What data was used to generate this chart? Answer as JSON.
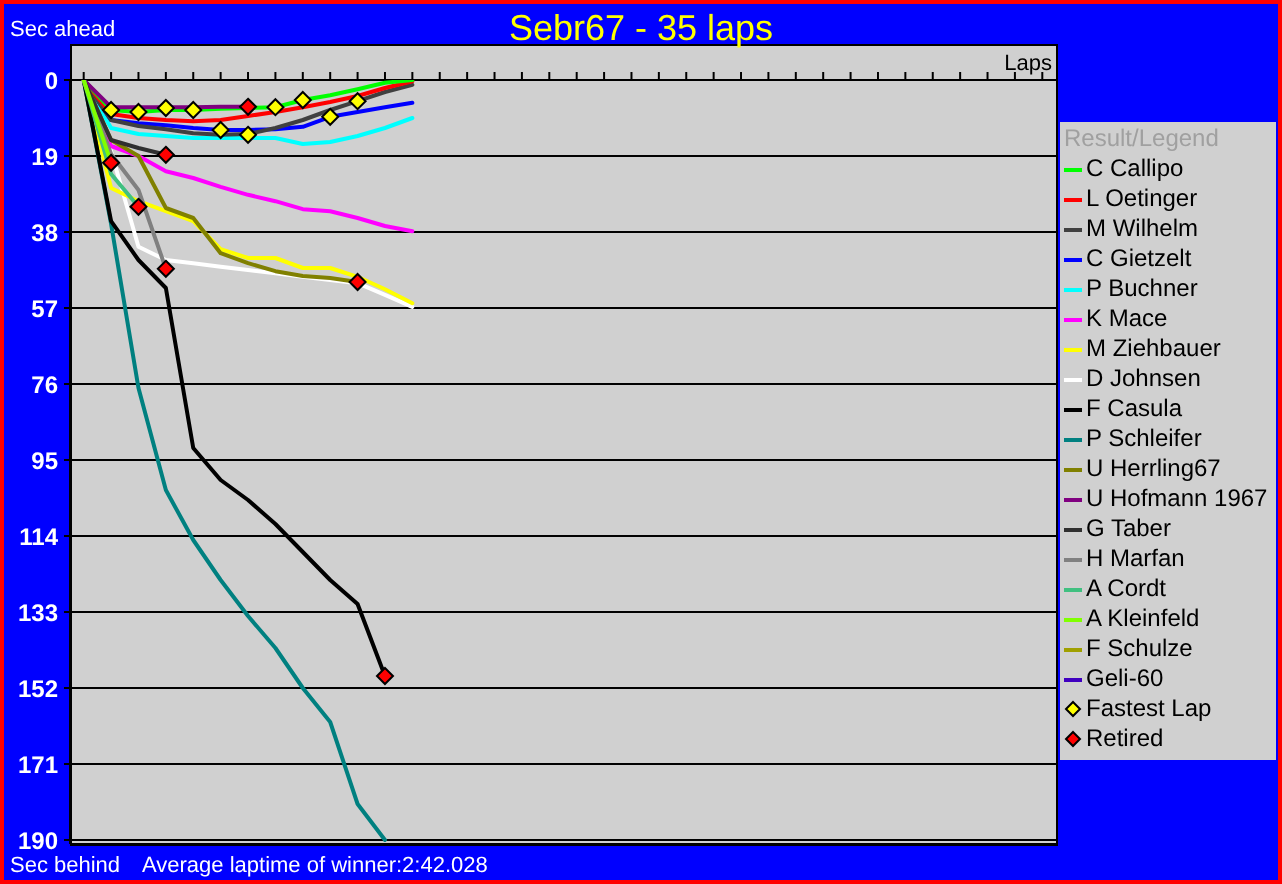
{
  "chart_data": {
    "type": "line",
    "title": "Sebr67 - 35 laps",
    "xlabel": "Laps",
    "ylabel": "Sec ahead",
    "legend_title": "Result/Legend",
    "annotations": [
      "Sec behind",
      "Average laptime of winner:2:42.028"
    ],
    "categories": [
      null,
      null,
      null,
      null,
      null,
      null,
      null,
      null,
      null,
      null,
      null,
      null,
      null,
      null,
      null,
      null,
      null,
      null,
      null,
      null,
      null,
      null,
      null,
      null,
      null,
      null,
      null,
      null,
      null,
      null,
      null,
      null,
      null,
      null,
      null,
      null
    ],
    "ylim": [
      191,
      0
    ],
    "yticks": [
      0,
      19,
      38,
      57,
      76,
      95,
      114,
      133,
      152,
      171,
      190
    ],
    "grid": "y",
    "legend": "right",
    "tick_labels": "y",
    "series": [
      {
        "name": "C Callipo",
        "color": "#00ff00",
        "values": [
          0,
          7.5,
          8,
          7.5,
          7.5,
          7.2,
          7,
          6.8,
          5,
          3.8,
          2.3,
          0.7,
          0,
          null,
          null,
          null,
          null,
          null,
          null,
          null,
          null,
          null,
          null,
          null,
          null,
          null,
          null,
          null,
          null,
          null,
          null,
          null,
          null,
          null,
          null,
          null
        ]
      },
      {
        "name": "L Oetinger",
        "color": "#ff0000",
        "values": [
          0,
          8.5,
          9.5,
          10,
          10.3,
          10,
          9,
          8,
          6.8,
          5.5,
          4,
          2,
          0.3,
          null,
          null,
          null,
          null,
          null,
          null,
          null,
          null,
          null,
          null,
          null,
          null,
          null,
          null,
          null,
          null,
          null,
          null,
          null,
          null,
          null,
          null,
          null
        ]
      },
      {
        "name": "M Wilhelm",
        "color": "#404040",
        "values": [
          0,
          10,
          11.5,
          12.3,
          13.3,
          13.7,
          13.5,
          12,
          10,
          7.5,
          5.3,
          3,
          1.2,
          null,
          null,
          null,
          null,
          null,
          null,
          null,
          null,
          null,
          null,
          null,
          null,
          null,
          null,
          null,
          null,
          null,
          null,
          null,
          null,
          null,
          null,
          null
        ]
      },
      {
        "name": "C Gietzelt",
        "color": "#0000ff",
        "values": [
          0,
          10,
          10.8,
          11.3,
          12,
          12.5,
          12.5,
          12.3,
          11.7,
          9.2,
          8,
          6.8,
          5.7,
          null,
          null,
          null,
          null,
          null,
          null,
          null,
          null,
          null,
          null,
          null,
          null,
          null,
          null,
          null,
          null,
          null,
          null,
          null,
          null,
          null,
          null,
          null
        ]
      },
      {
        "name": "P Buchner",
        "color": "#00ffff",
        "values": [
          0,
          12,
          13.5,
          14,
          14.5,
          14.5,
          14.5,
          14.5,
          16,
          15.5,
          14,
          12,
          9.5,
          null,
          null,
          null,
          null,
          null,
          null,
          null,
          null,
          null,
          null,
          null,
          null,
          null,
          null,
          null,
          null,
          null,
          null,
          null,
          null,
          null,
          null,
          null
        ]
      },
      {
        "name": "K Mace",
        "color": "#ff00ff",
        "values": [
          0,
          16.5,
          19,
          22.8,
          24.5,
          26.7,
          28.7,
          30.3,
          32.3,
          32.8,
          34.5,
          36.5,
          37.8,
          null,
          null,
          null,
          null,
          null,
          null,
          null,
          null,
          null,
          null,
          null,
          null,
          null,
          null,
          null,
          null,
          null,
          null,
          null,
          null,
          null,
          null,
          null
        ]
      },
      {
        "name": "M Ziehbauer",
        "color": "#ffff00",
        "values": [
          0,
          27,
          30.3,
          32.8,
          35.3,
          42.3,
          44.5,
          44.5,
          47,
          47,
          49.2,
          52.3,
          55.8,
          null,
          null,
          null,
          null,
          null,
          null,
          null,
          null,
          null,
          null,
          null,
          null,
          null,
          null,
          null,
          null,
          null,
          null,
          null,
          null,
          null,
          null,
          null
        ]
      },
      {
        "name": "D Johnsen",
        "color": "#ffffff",
        "values": [
          0,
          17.8,
          41.7,
          45,
          45.8,
          46.7,
          47.5,
          48.3,
          49.2,
          50,
          50.8,
          53.7,
          56.7,
          null,
          null,
          null,
          null,
          null,
          null,
          null,
          null,
          null,
          null,
          null,
          null,
          null,
          null,
          null,
          null,
          null,
          null,
          null,
          null,
          null,
          null,
          null
        ]
      },
      {
        "name": "F Casula",
        "color": "#000000",
        "values": [
          0,
          35.3,
          45,
          52,
          92,
          100,
          105,
          111,
          118,
          125,
          131,
          149,
          null,
          null,
          null,
          null,
          null,
          null,
          null,
          null,
          null,
          null,
          null,
          null,
          null,
          null,
          null,
          null,
          null,
          null,
          null,
          null,
          null,
          null,
          null,
          null
        ]
      },
      {
        "name": "P Schleifer",
        "color": "#008080",
        "values": [
          0,
          36,
          77,
          102.5,
          115,
          125,
          134,
          142,
          152,
          160.5,
          181,
          190,
          null,
          null,
          null,
          null,
          null,
          null,
          null,
          null,
          null,
          null,
          null,
          null,
          null,
          null,
          null,
          null,
          null,
          null,
          null,
          null,
          null,
          null,
          null,
          null
        ]
      },
      {
        "name": "U Herrling67",
        "color": "#808000",
        "values": [
          0,
          15,
          19,
          32,
          34.5,
          43.3,
          45.8,
          47.8,
          49,
          49.5,
          50.5,
          null,
          null,
          null,
          null,
          null,
          null,
          null,
          null,
          null,
          null,
          null,
          null,
          null,
          null,
          null,
          null,
          null,
          null,
          null,
          null,
          null,
          null,
          null,
          null,
          null
        ]
      },
      {
        "name": "U Hofmann 1967",
        "color": "#800080",
        "values": [
          0,
          6.8,
          6.8,
          6.8,
          6.8,
          6.7,
          6.7,
          null,
          null,
          null,
          null,
          null,
          null,
          null,
          null,
          null,
          null,
          null,
          null,
          null,
          null,
          null,
          null,
          null,
          null,
          null,
          null,
          null,
          null,
          null,
          null,
          null,
          null,
          null,
          null,
          null
        ]
      },
      {
        "name": "G Taber",
        "color": "#303030",
        "values": [
          0,
          15,
          17,
          18.7,
          null,
          null,
          null,
          null,
          null,
          null,
          null,
          null,
          null,
          null,
          null,
          null,
          null,
          null,
          null,
          null,
          null,
          null,
          null,
          null,
          null,
          null,
          null,
          null,
          null,
          null,
          null,
          null,
          null,
          null,
          null,
          null
        ]
      },
      {
        "name": "H Marfan",
        "color": "#808080",
        "values": [
          0,
          18.5,
          27.5,
          47.2,
          null,
          null,
          null,
          null,
          null,
          null,
          null,
          null,
          null,
          null,
          null,
          null,
          null,
          null,
          null,
          null,
          null,
          null,
          null,
          null,
          null,
          null,
          null,
          null,
          null,
          null,
          null,
          null,
          null,
          null,
          null,
          null
        ]
      },
      {
        "name": "A Cordt",
        "color": "#40c080",
        "values": [
          0,
          23.5,
          31.7,
          null,
          null,
          null,
          null,
          null,
          null,
          null,
          null,
          null,
          null,
          null,
          null,
          null,
          null,
          null,
          null,
          null,
          null,
          null,
          null,
          null,
          null,
          null,
          null,
          null,
          null,
          null,
          null,
          null,
          null,
          null,
          null,
          null
        ]
      },
      {
        "name": "A Kleinfeld",
        "color": "#80ff00",
        "values": [
          0,
          20.7,
          null,
          null,
          null,
          null,
          null,
          null,
          null,
          null,
          null,
          null,
          null,
          null,
          null,
          null,
          null,
          null,
          null,
          null,
          null,
          null,
          null,
          null,
          null,
          null,
          null,
          null,
          null,
          null,
          null,
          null,
          null,
          null,
          null,
          null
        ]
      },
      {
        "name": "F Schulze",
        "color": "#a0a000",
        "values": [
          null,
          null,
          null,
          null,
          null,
          null,
          null,
          null,
          null,
          null,
          null,
          null,
          null,
          null,
          null,
          null,
          null,
          null,
          null,
          null,
          null,
          null,
          null,
          null,
          null,
          null,
          null,
          null,
          null,
          null,
          null,
          null,
          null,
          null,
          null,
          null
        ]
      },
      {
        "name": "Geli-60",
        "color": "#4000c0",
        "values": [
          null,
          null,
          null,
          null,
          null,
          null,
          null,
          null,
          null,
          null,
          null,
          null,
          null,
          null,
          null,
          null,
          null,
          null,
          null,
          null,
          null,
          null,
          null,
          null,
          null,
          null,
          null,
          null,
          null,
          null,
          null,
          null,
          null,
          null,
          null,
          null
        ]
      },
      {
        "name": "Fastest Lap",
        "type": "scatter",
        "marker": "diamond",
        "color": "#ffff00",
        "values": [
          null,
          7.5,
          8,
          7,
          7.5,
          12.5,
          13.7,
          6.8,
          5,
          9.2,
          5.3,
          null,
          null,
          null,
          null,
          null,
          null,
          null,
          null,
          null,
          null,
          null,
          null,
          null,
          null,
          null,
          null,
          null,
          null,
          null,
          null,
          null,
          null,
          null,
          null,
          null
        ]
      },
      {
        "name": "Retired",
        "type": "scatter",
        "marker": "diamond",
        "color": "#ff0000",
        "values": [
          null,
          20.7,
          31.7,
          18.7,
          null,
          null,
          6.7,
          null,
          null,
          null,
          50.5,
          149,
          null,
          null,
          null,
          null,
          null,
          null,
          null,
          null,
          null,
          null,
          null,
          null,
          null,
          null,
          null,
          null,
          null,
          null,
          null,
          null,
          null,
          null,
          null,
          null
        ]
      },
      {
        "type": "scatter",
        "marker": "diamond",
        "color": "#ff0000",
        "values": [
          null,
          null,
          null,
          47.2,
          null,
          null,
          null,
          null,
          null,
          null,
          null,
          null,
          null,
          null,
          null,
          null,
          null,
          null,
          null,
          null,
          null,
          null,
          null,
          null,
          null,
          null,
          null,
          null,
          null,
          null,
          null,
          null,
          null,
          null,
          null,
          null
        ]
      }
    ]
  }
}
